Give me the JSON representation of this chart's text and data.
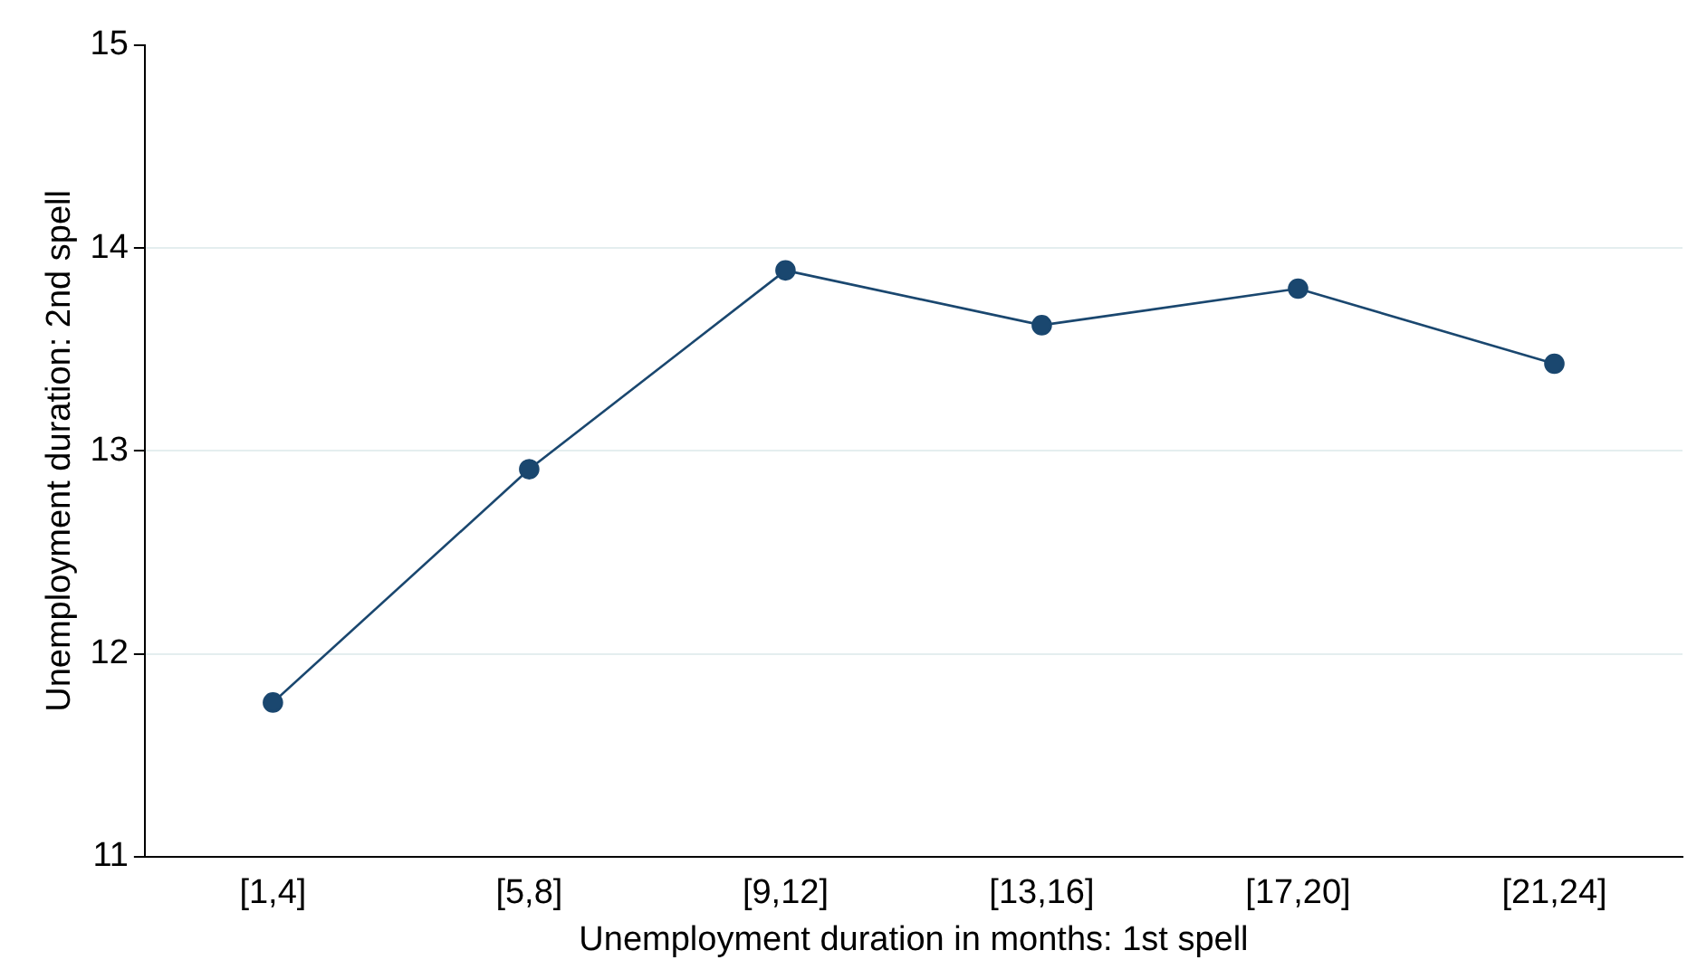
{
  "chart_data": {
    "type": "line",
    "xlabel": "Unemployment duration in months: 1st spell",
    "ylabel": "Unemployment duration: 2nd spell",
    "categories": [
      "[1,4]",
      "[5,8]",
      "[9,12]",
      "[13,16]",
      "[17,20]",
      "[21,24]"
    ],
    "series": [
      {
        "color": "#1a476f",
        "values": [
          11.76,
          12.91,
          13.89,
          13.62,
          13.8,
          13.43
        ]
      }
    ],
    "ylim": [
      11,
      15
    ],
    "yticks": [
      11,
      12,
      13,
      14,
      15
    ],
    "grid": "y",
    "marker": "circle",
    "line_style": "solid",
    "legend": false
  }
}
